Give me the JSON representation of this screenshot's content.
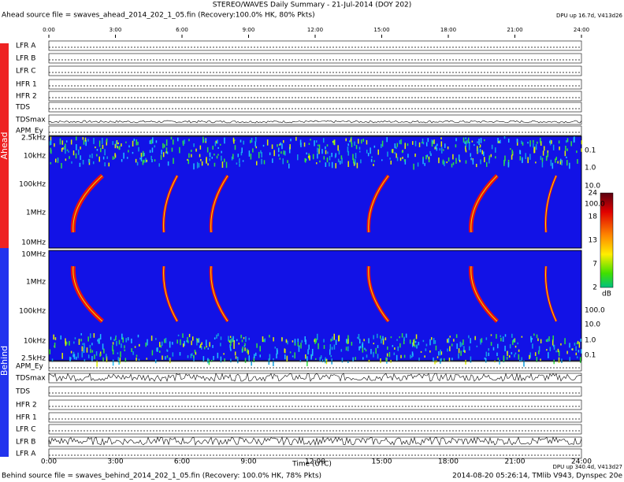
{
  "header": {
    "title": "STEREO/WAVES Daily Summary - 21-Jul-2014 (DOY 202)",
    "ahead_source": "Ahead source file = swaves_ahead_2014_202_1_05.fin (Recovery:100.0% HK, 80% Pkts)",
    "dpu_ahead": "DPU up 16.7d, V413d26"
  },
  "time_ticks": [
    "0:00",
    "3:00",
    "6:00",
    "9:00",
    "12:00",
    "15:00",
    "18:00",
    "21:00",
    "24:00"
  ],
  "x_label": "Time (UTC)",
  "side_labels": {
    "ahead": "Ahead",
    "behind": "Behind"
  },
  "ahead_rows": [
    "LFR A",
    "LFR B",
    "LFR C",
    "HFR 1",
    "HFR 2",
    "TDS",
    "TDSmax",
    "APM_Ey"
  ],
  "behind_rows": [
    "APM_Ey",
    "TDSmax",
    "TDS",
    "HFR 2",
    "HFR 1",
    "LFR C",
    "LFR B",
    "LFR A"
  ],
  "ahead_freq": [
    "2.5kHz",
    "10kHz",
    "100kHz",
    "1MHz",
    "10MHz"
  ],
  "behind_freq": [
    "10MHz",
    "1MHz",
    "100kHz",
    "10kHz",
    "2.5kHz"
  ],
  "ahead_right": [
    "0.1",
    "1.0",
    "10.0",
    "100.0"
  ],
  "behind_right": [
    "100.0",
    "10.0",
    "1.0",
    "0.1"
  ],
  "colorbar": {
    "ticks": [
      "24",
      "18",
      "13",
      "7",
      "2"
    ],
    "unit": "dB"
  },
  "footer": {
    "behind_source": "Behind source file = swaves_behind_2014_202_1_05.fin (Recovery: 100.0% HK, 78% Pkts)",
    "stamp": "2014-08-20 05:26:14, TMlib V943, Dynspec 20e",
    "dpu_behind": "DPU up 340.4d, V413d27"
  }
}
